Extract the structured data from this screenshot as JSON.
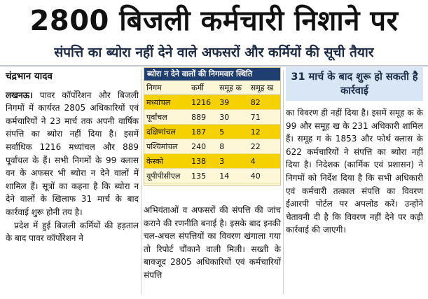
{
  "headline": "2800 बिजली कर्मचारी निशाने पर",
  "subhead": "संपत्ति का ब्योरा नहीं देने वाले अफसरों और कर्मियों की सूची तैयार",
  "byline": "चंद्रभान यादव",
  "left_column": {
    "dateline": "लखनऊ।",
    "para1": "पावर कॉर्पोरेशन और बिजली निगमों में कार्यरत 2805 अधिकारियों एवं कर्मचारियों ने 23 मार्च तक अपनी वार्षिक संपत्ति का ब्योरा नहीं दिया है। इसमें सर्वाधिक 1216 मध्यांचल और 889 पूर्वांचल के हैं। सभी निगमों के 99 क्लास वन के अफसर भी ब्योरा न देने वालों में शामिल हैं। सूत्रों का कहना है कि ब्योरा न देने वालों के खिलाफ 31 मार्च के बाद कार्रवाई शुरू होनी तय है।",
    "para2": "प्रदेश में हुई बिजली कर्मियों की हड़ताल के बाद पावर कॉर्पोरेशन ने"
  },
  "table": {
    "title": "ब्योरा न देने वालों की निगमवार स्थिति",
    "headers": [
      "निगम",
      "कर्मी",
      "समूह क",
      "समूह ख"
    ],
    "rows": [
      {
        "name": "मध्यांचल",
        "karmi": "1216",
        "a": "39",
        "b": "82",
        "highlight": true
      },
      {
        "name": "पूर्वांचल",
        "karmi": "889",
        "a": "30",
        "b": "71",
        "highlight": false
      },
      {
        "name": "दक्षिणांचल",
        "karmi": "187",
        "a": "5",
        "b": "12",
        "highlight": true
      },
      {
        "name": "पश्चिमांचल",
        "karmi": "240",
        "a": "8",
        "b": "22",
        "highlight": false
      },
      {
        "name": "केस्को",
        "karmi": "138",
        "a": "3",
        "b": "4",
        "highlight": true
      },
      {
        "name": "यूपीपीसीएल",
        "karmi": "135",
        "a": "14",
        "b": "40",
        "highlight": false
      }
    ]
  },
  "middle_column": {
    "body": "अभियंताओं व अफसरों की संपत्ति की जांच कराने की रणनीति बनाई है। इसके बाद इनकी चल-अचल संपत्तियों का विवरण खंगाला गया तो रिपोर्ट चौंकाने वाली मिली। सख्ती के बावजूद 2805 अधिकारियों एवं कर्मचारियों संपत्ति"
  },
  "right_column": {
    "callout": "31 मार्च के बाद शुरू हो सकती है कार्रवाई",
    "body": "का विवरण ही नहीं दिया है। इसमें समूह क के 99 और समूह ख के 231 अधिकारी शामिल हैं। समूह ग के 1853 और फोर्थ क्लास के 622 कर्मचारियों ने संपत्ति का ब्योरा नहीं दिया है। निदेशक (कार्मिक एवं प्रशासन) ने निगमों को निर्देश दिया है कि सभी अधिकारी एवं कर्मचारी तत्काल संपत्ति का विवरण ईआरपी पोर्टल पर अपलोड करें। उन्होंने चेतावनी दी है कि विवरण नहीं देने पर कड़ी कार्रवाई की जाएगी।"
  },
  "colors": {
    "table_header_bg": "#1f3f73",
    "table_bg": "#fdf7d8",
    "highlight_row": "#f5d100",
    "callout_bg": "#d8e6f6"
  }
}
